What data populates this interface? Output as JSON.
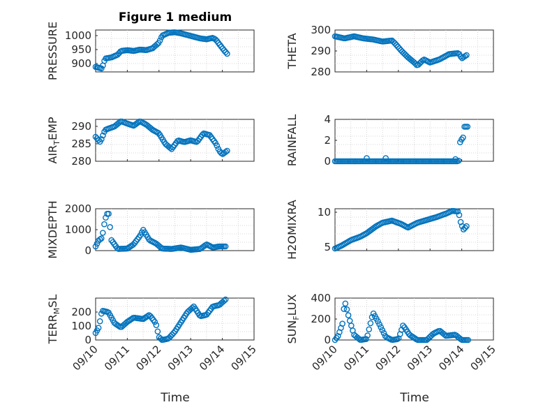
{
  "figure": {
    "title": "Figure 1 medium",
    "xlabel_left": "Time",
    "xlabel_right": "Time",
    "marker_color": "#0072BD"
  },
  "chart_data": [
    {
      "type": "scatter",
      "ylabel": "PRESSURE",
      "xlim": [
        0,
        5
      ],
      "ylim": [
        870,
        1020
      ],
      "yticks": [
        {
          "v": 900,
          "label": "900"
        },
        {
          "v": 950,
          "label": "950"
        },
        {
          "v": 1000,
          "label": "1000"
        }
      ],
      "xticks": [],
      "anchors": [
        [
          0.0,
          888
        ],
        [
          0.2,
          882
        ],
        [
          0.3,
          918
        ],
        [
          0.5,
          922
        ],
        [
          0.7,
          932
        ],
        [
          0.8,
          945
        ],
        [
          1.0,
          948
        ],
        [
          1.2,
          945
        ],
        [
          1.4,
          950
        ],
        [
          1.6,
          948
        ],
        [
          1.8,
          955
        ],
        [
          2.0,
          975
        ],
        [
          2.1,
          1000
        ],
        [
          2.3,
          1010
        ],
        [
          2.5,
          1012
        ],
        [
          2.7,
          1008
        ],
        [
          2.9,
          1002
        ],
        [
          3.1,
          996
        ],
        [
          3.3,
          990
        ],
        [
          3.5,
          987
        ],
        [
          3.7,
          992
        ],
        [
          3.8,
          985
        ],
        [
          3.9,
          970
        ],
        [
          4.05,
          948
        ],
        [
          4.15,
          935
        ]
      ]
    },
    {
      "type": "scatter",
      "ylabel": "THETA",
      "xlim": [
        0,
        5
      ],
      "ylim": [
        280,
        300
      ],
      "yticks": [
        {
          "v": 280,
          "label": "280"
        },
        {
          "v": 290,
          "label": "290"
        },
        {
          "v": 300,
          "label": "300"
        }
      ],
      "xticks": [],
      "anchors": [
        [
          0.0,
          297
        ],
        [
          0.3,
          296
        ],
        [
          0.6,
          297
        ],
        [
          0.9,
          296
        ],
        [
          1.2,
          295.5
        ],
        [
          1.5,
          294.5
        ],
        [
          1.8,
          295
        ],
        [
          1.9,
          293.5
        ],
        [
          2.1,
          290
        ],
        [
          2.3,
          287
        ],
        [
          2.5,
          284.5
        ],
        [
          2.6,
          283
        ],
        [
          2.8,
          286
        ],
        [
          3.0,
          284.5
        ],
        [
          3.3,
          286
        ],
        [
          3.6,
          288.5
        ],
        [
          3.9,
          289
        ],
        [
          4.0,
          286.5
        ],
        [
          4.15,
          288
        ]
      ]
    },
    {
      "type": "scatter",
      "ylabel": "AIR_TEMP",
      "xlim": [
        0,
        5
      ],
      "ylim": [
        280,
        292
      ],
      "yticks": [
        {
          "v": 280,
          "label": "280"
        },
        {
          "v": 285,
          "label": "285"
        },
        {
          "v": 290,
          "label": "290"
        }
      ],
      "xticks": [],
      "anchors": [
        [
          0.0,
          287
        ],
        [
          0.15,
          285.5
        ],
        [
          0.3,
          289
        ],
        [
          0.6,
          290
        ],
        [
          0.8,
          291.5
        ],
        [
          1.0,
          290.8
        ],
        [
          1.2,
          290.2
        ],
        [
          1.4,
          291.5
        ],
        [
          1.6,
          290.5
        ],
        [
          1.8,
          289
        ],
        [
          2.0,
          288
        ],
        [
          2.2,
          285
        ],
        [
          2.4,
          283.5
        ],
        [
          2.6,
          286
        ],
        [
          2.8,
          285.5
        ],
        [
          3.0,
          286
        ],
        [
          3.2,
          285.5
        ],
        [
          3.4,
          288
        ],
        [
          3.6,
          287.5
        ],
        [
          3.8,
          285
        ],
        [
          3.9,
          283
        ],
        [
          4.0,
          282
        ],
        [
          4.15,
          283
        ]
      ]
    },
    {
      "type": "scatter",
      "ylabel": "RAINFALL",
      "xlim": [
        0,
        5
      ],
      "ylim": [
        0,
        4
      ],
      "yticks": [
        {
          "v": 0,
          "label": "0"
        },
        {
          "v": 2,
          "label": "2"
        },
        {
          "v": 4,
          "label": "4"
        }
      ],
      "xticks": [],
      "anchors": [
        [
          0.0,
          0
        ],
        [
          3.9,
          0
        ],
        [
          3.95,
          1.9
        ],
        [
          4.05,
          2.3
        ],
        [
          4.08,
          3.3
        ],
        [
          4.18,
          3.3
        ]
      ],
      "extra_points": [
        [
          1.0,
          0.3
        ],
        [
          1.6,
          0.3
        ],
        [
          3.8,
          0.2
        ]
      ]
    },
    {
      "type": "scatter",
      "ylabel": "MIXDEPTH",
      "xlim": [
        0,
        5
      ],
      "ylim": [
        0,
        2000
      ],
      "yticks": [
        {
          "v": 0,
          "label": "0"
        },
        {
          "v": 1000,
          "label": "1000"
        },
        {
          "v": 2000,
          "label": "2000"
        }
      ],
      "xticks": [],
      "anchors": [
        [
          0.0,
          200
        ],
        [
          0.1,
          500
        ],
        [
          0.2,
          600
        ],
        [
          0.3,
          1500
        ],
        [
          0.4,
          1900
        ],
        [
          0.5,
          500
        ],
        [
          0.7,
          80
        ],
        [
          1.0,
          100
        ],
        [
          1.2,
          300
        ],
        [
          1.4,
          700
        ],
        [
          1.5,
          1000
        ],
        [
          1.7,
          500
        ],
        [
          1.9,
          350
        ],
        [
          2.1,
          100
        ],
        [
          2.4,
          80
        ],
        [
          2.7,
          150
        ],
        [
          3.0,
          40
        ],
        [
          3.3,
          80
        ],
        [
          3.5,
          300
        ],
        [
          3.7,
          150
        ],
        [
          3.9,
          200
        ],
        [
          4.1,
          200
        ]
      ]
    },
    {
      "type": "scatter",
      "ylabel": "H2OMIXRA",
      "xlim": [
        0,
        5
      ],
      "ylim": [
        4.5,
        10.5
      ],
      "yticks": [
        {
          "v": 5,
          "label": "5"
        },
        {
          "v": 10,
          "label": "10"
        }
      ],
      "xticks": [],
      "anchors": [
        [
          0.0,
          4.8
        ],
        [
          0.2,
          5.2
        ],
        [
          0.5,
          6.0
        ],
        [
          0.8,
          6.5
        ],
        [
          1.0,
          7.0
        ],
        [
          1.3,
          8.0
        ],
        [
          1.5,
          8.5
        ],
        [
          1.8,
          8.8
        ],
        [
          2.1,
          8.3
        ],
        [
          2.3,
          7.8
        ],
        [
          2.6,
          8.5
        ],
        [
          2.9,
          8.9
        ],
        [
          3.2,
          9.3
        ],
        [
          3.5,
          9.8
        ],
        [
          3.7,
          10.2
        ],
        [
          3.9,
          10.1
        ],
        [
          3.95,
          8.8
        ],
        [
          4.05,
          7.5
        ],
        [
          4.15,
          8.0
        ]
      ]
    },
    {
      "type": "scatter",
      "ylabel": "TERR_MSL",
      "xlim": [
        0,
        5
      ],
      "ylim": [
        0,
        300
      ],
      "yticks": [
        {
          "v": 0,
          "label": "0"
        },
        {
          "v": 100,
          "label": "100"
        },
        {
          "v": 200,
          "label": "200"
        }
      ],
      "xticks": [
        {
          "v": 0,
          "label": "09/10"
        },
        {
          "v": 1,
          "label": "09/11"
        },
        {
          "v": 2,
          "label": "09/12"
        },
        {
          "v": 3,
          "label": "09/13"
        },
        {
          "v": 4,
          "label": "09/14"
        },
        {
          "v": 5,
          "label": "09/15"
        }
      ],
      "anchors": [
        [
          0.0,
          50
        ],
        [
          0.1,
          90
        ],
        [
          0.2,
          210
        ],
        [
          0.4,
          200
        ],
        [
          0.6,
          120
        ],
        [
          0.8,
          90
        ],
        [
          1.0,
          130
        ],
        [
          1.2,
          160
        ],
        [
          1.5,
          150
        ],
        [
          1.7,
          180
        ],
        [
          1.9,
          120
        ],
        [
          2.0,
          20
        ],
        [
          2.1,
          0
        ],
        [
          2.3,
          10
        ],
        [
          2.5,
          60
        ],
        [
          2.7,
          130
        ],
        [
          2.9,
          200
        ],
        [
          3.1,
          240
        ],
        [
          3.3,
          170
        ],
        [
          3.5,
          180
        ],
        [
          3.7,
          240
        ],
        [
          3.9,
          250
        ],
        [
          4.1,
          290
        ]
      ]
    },
    {
      "type": "scatter",
      "ylabel": "SUN_FLUX",
      "xlim": [
        0,
        5
      ],
      "ylim": [
        0,
        400
      ],
      "yticks": [
        {
          "v": 0,
          "label": "0"
        },
        {
          "v": 200,
          "label": "200"
        },
        {
          "v": 400,
          "label": "400"
        }
      ],
      "xticks": [
        {
          "v": 0,
          "label": "09/10"
        },
        {
          "v": 1,
          "label": "09/11"
        },
        {
          "v": 2,
          "label": "09/12"
        },
        {
          "v": 3,
          "label": "09/13"
        },
        {
          "v": 4,
          "label": "09/14"
        },
        {
          "v": 5,
          "label": "09/15"
        }
      ],
      "anchors": [
        [
          0.0,
          0
        ],
        [
          0.1,
          40
        ],
        [
          0.25,
          170
        ],
        [
          0.3,
          380
        ],
        [
          0.45,
          200
        ],
        [
          0.6,
          50
        ],
        [
          0.8,
          0
        ],
        [
          1.0,
          10
        ],
        [
          1.2,
          260
        ],
        [
          1.35,
          180
        ],
        [
          1.6,
          30
        ],
        [
          1.8,
          0
        ],
        [
          2.0,
          10
        ],
        [
          2.15,
          140
        ],
        [
          2.35,
          50
        ],
        [
          2.6,
          0
        ],
        [
          2.9,
          0
        ],
        [
          3.1,
          60
        ],
        [
          3.3,
          90
        ],
        [
          3.5,
          40
        ],
        [
          3.8,
          50
        ],
        [
          4.0,
          0
        ],
        [
          4.2,
          0
        ]
      ]
    }
  ]
}
